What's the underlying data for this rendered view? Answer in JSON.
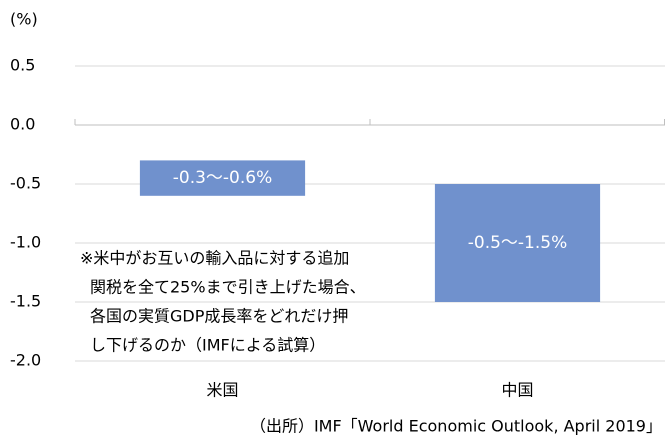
{
  "chart_data": {
    "type": "range_bar",
    "unit_label": "(%)",
    "categories": [
      "米国",
      "中国"
    ],
    "values": [
      [
        -0.3,
        -0.6
      ],
      [
        -0.5,
        -1.5
      ]
    ],
    "value_labels": [
      "-0.3〜-0.6%",
      "-0.5〜-1.5%"
    ],
    "color": "#7091cd",
    "ylim": [
      -2,
      0.5
    ],
    "yticks": [
      0.5,
      {
        "value": 0,
        "label": "0.0"
      },
      -0.5,
      {
        "value": -1,
        "label": "-1.0"
      },
      -1.5,
      {
        "value": -2,
        "label": "-2.0"
      }
    ],
    "grid": true,
    "annotation": [
      "※米中がお互いの輸入品に対する追加",
      "関税を全て25%まで引き上げた場合、",
      "各国の実質GDP成長率をどれだけ押",
      "し下げるのか（IMFによる試算）"
    ],
    "source": "（出所）IMF「World Economic Outlook, April 2019」"
  }
}
